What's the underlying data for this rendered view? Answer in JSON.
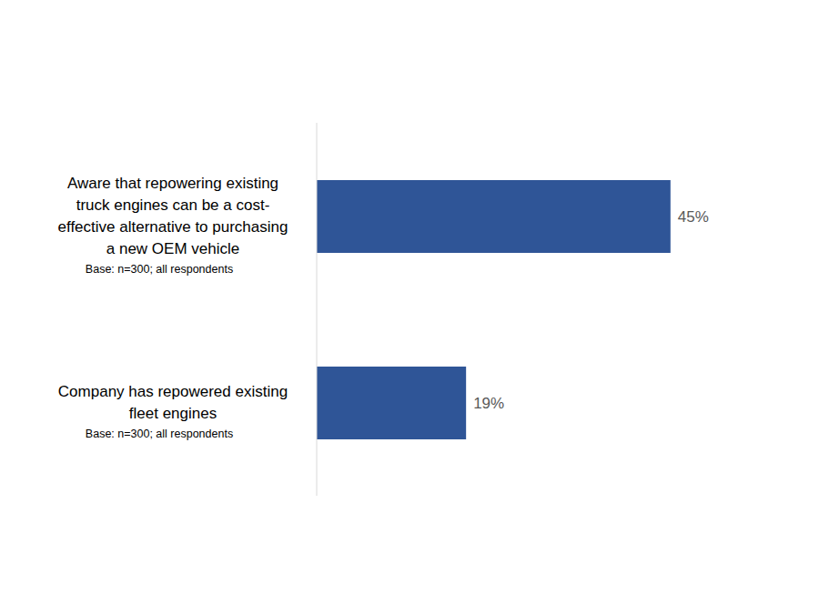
{
  "chart_data": {
    "type": "bar",
    "orientation": "horizontal",
    "categories": [
      "Aware that repowering existing truck engines can be a cost-effective alternative to purchasing a new OEM vehicle",
      "Company has repowered existing fleet engines"
    ],
    "base_notes": [
      "Base: n=300;  all respondents",
      "Base: n=300;  all respondents"
    ],
    "values": [
      45,
      19
    ],
    "value_labels": [
      "45%",
      "19%"
    ],
    "color": "#2f5597",
    "xlim": [
      0,
      50
    ],
    "data_labels": true,
    "tick_labels": "y"
  }
}
